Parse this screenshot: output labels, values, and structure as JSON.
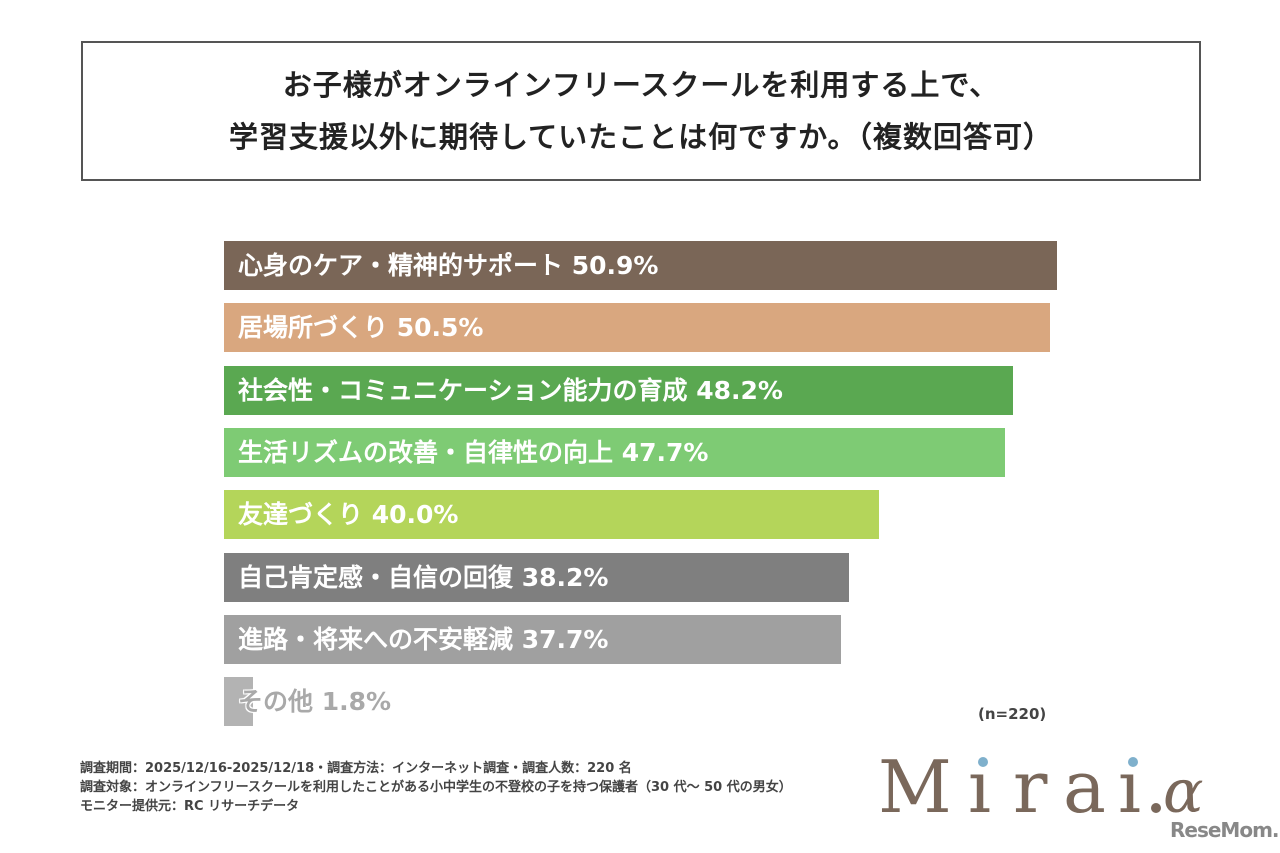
{
  "title": {
    "line1": "お子様がオンラインフリースクールを利用する上で、",
    "line2": "学習支援以外に期待していたことは何ですか。（複数回答可）"
  },
  "chart_data": {
    "type": "bar",
    "orientation": "horizontal",
    "unit": "%",
    "xlim": [
      0,
      50.9
    ],
    "grid": false,
    "categories": [
      "心身のケア・精神的サポート",
      "居場所づくり",
      "社会性・コミュニケーション能力の育成",
      "生活リズムの改善・自律性の向上",
      "友達づくり",
      "自己肯定感・自信の回復",
      "進路・将来への不安軽減",
      "その他"
    ],
    "values": [
      50.9,
      50.5,
      48.2,
      47.7,
      40.0,
      38.2,
      37.7,
      1.8
    ],
    "data_labels": [
      "心身のケア・精神的サポート 50.9%",
      "居場所づくり 50.5%",
      "社会性・コミュニケーション能力の育成 48.2%",
      "生活リズムの改善・自律性の向上 47.7%",
      "友達づくり 40.0%",
      "自己肯定感・自信の回復 38.2%",
      "進路・将来への不安軽減 37.7%",
      "その他 1.8%"
    ],
    "colors": [
      "#7a6657",
      "#d9a77f",
      "#5aa851",
      "#7ecb74",
      "#b4d55a",
      "#7f7f7f",
      "#a0a0a0",
      "#b3b3b3"
    ]
  },
  "sample_note": "(n=220)",
  "footer": {
    "line1": "調査期間：2025/12/16-2025/12/18・調査方法：インターネット調査・調査人数：220 名",
    "line2": "調査対象：オンラインフリースクールを利用したことがある小中学生の不登校の子を持つ保護者（30 代～ 50 代の男女）",
    "line3": "モニター提供元：RC リサーチデータ"
  },
  "logo": {
    "text": "Mirai.α",
    "watermark": "ReseMom."
  }
}
